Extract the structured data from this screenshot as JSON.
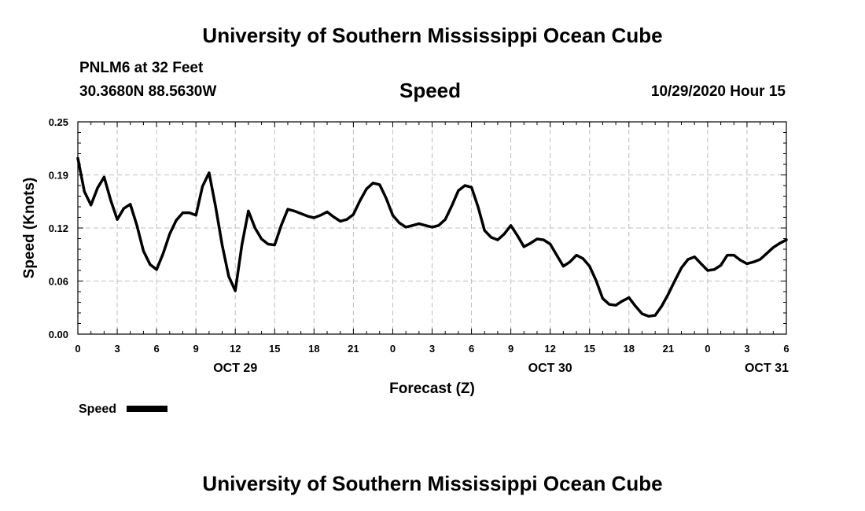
{
  "page": {
    "title_top": "University of Southern Mississippi Ocean Cube",
    "title_bottom": "University of Southern Mississippi Ocean Cube",
    "station": "PNLM6 at 32 Feet",
    "location": "30.3680N 88.5630W",
    "chart_title": "Speed",
    "datetime": "10/29/2020 Hour 15"
  },
  "chart_data": {
    "type": "line",
    "title": "Speed",
    "xlabel": "Forecast (Z)",
    "ylabel": "Speed (Knots)",
    "ylim": [
      0,
      0.25
    ],
    "xlim": [
      0,
      54
    ],
    "y_ticks": [
      "0.00",
      "0.06",
      "0.12",
      "0.19",
      "0.25"
    ],
    "y_tick_values": [
      0,
      0.0625,
      0.125,
      0.1875,
      0.25
    ],
    "x_tick_labels": [
      "0",
      "3",
      "6",
      "9",
      "12",
      "15",
      "18",
      "21",
      "0",
      "3",
      "6",
      "9",
      "12",
      "15",
      "18",
      "21",
      "0",
      "3",
      "6"
    ],
    "date_labels": [
      {
        "label": "OCT 29",
        "hour": 12
      },
      {
        "label": "OCT 30",
        "hour": 36
      },
      {
        "label": "OCT 31",
        "hour": 52.5
      }
    ],
    "grid": true,
    "series": [
      {
        "name": "Speed",
        "color": "#000000",
        "x": [
          0,
          0.5,
          1,
          1.5,
          2,
          2.5,
          3,
          3.5,
          4,
          4.5,
          5,
          5.5,
          6,
          6.5,
          7,
          7.5,
          8,
          8.5,
          9,
          9.5,
          10,
          10.5,
          11,
          11.5,
          12,
          12.5,
          13,
          13.5,
          14,
          14.5,
          15,
          15.5,
          16,
          16.5,
          17,
          17.5,
          18,
          18.5,
          19,
          19.5,
          20,
          20.5,
          21,
          21.5,
          22,
          22.5,
          23,
          23.5,
          24,
          24.5,
          25,
          25.5,
          26,
          26.5,
          27,
          27.5,
          28,
          28.5,
          29,
          29.5,
          30,
          30.5,
          31,
          31.5,
          32,
          32.5,
          33,
          33.5,
          34,
          34.5,
          35,
          35.5,
          36,
          36.5,
          37,
          37.5,
          38,
          38.5,
          39,
          39.5,
          40,
          40.5,
          41,
          41.5,
          42,
          42.5,
          43,
          43.5,
          44,
          44.5,
          45,
          45.5,
          46,
          46.5,
          47,
          47.5,
          48,
          48.5,
          49,
          49.5,
          50,
          50.5,
          51,
          51.5,
          52,
          52.5,
          53,
          53.5,
          54
        ],
        "values": [
          0.207,
          0.168,
          0.152,
          0.172,
          0.185,
          0.158,
          0.135,
          0.148,
          0.153,
          0.128,
          0.098,
          0.082,
          0.076,
          0.095,
          0.118,
          0.134,
          0.143,
          0.143,
          0.14,
          0.174,
          0.19,
          0.15,
          0.105,
          0.068,
          0.051,
          0.105,
          0.145,
          0.125,
          0.112,
          0.106,
          0.105,
          0.128,
          0.147,
          0.145,
          0.142,
          0.139,
          0.137,
          0.14,
          0.144,
          0.138,
          0.133,
          0.135,
          0.141,
          0.157,
          0.171,
          0.178,
          0.176,
          0.16,
          0.14,
          0.131,
          0.126,
          0.128,
          0.13,
          0.128,
          0.126,
          0.128,
          0.135,
          0.151,
          0.169,
          0.175,
          0.173,
          0.15,
          0.122,
          0.114,
          0.111,
          0.118,
          0.128,
          0.116,
          0.103,
          0.107,
          0.112,
          0.111,
          0.106,
          0.093,
          0.08,
          0.085,
          0.093,
          0.089,
          0.08,
          0.063,
          0.042,
          0.035,
          0.034,
          0.039,
          0.043,
          0.033,
          0.024,
          0.021,
          0.022,
          0.033,
          0.047,
          0.063,
          0.078,
          0.088,
          0.091,
          0.083,
          0.075,
          0.076,
          0.081,
          0.093,
          0.093,
          0.087,
          0.083,
          0.085,
          0.088,
          0.095,
          0.102,
          0.107,
          0.111
        ]
      }
    ],
    "legend": {
      "label": "Speed",
      "position": "bottom-left"
    }
  }
}
